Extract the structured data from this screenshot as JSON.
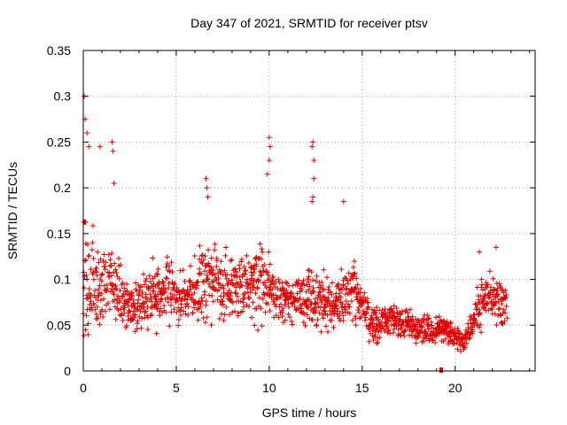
{
  "chart_data": {
    "type": "scatter",
    "title": "Day 347 of 2021, SRMTID for receiver ptsv",
    "xlabel": "GPS time / hours",
    "ylabel": "SRMTID / TECUs",
    "xlim": [
      0,
      24.3
    ],
    "ylim": [
      0,
      0.35
    ],
    "xticks": [
      0,
      5,
      10,
      15,
      20
    ],
    "yticks": [
      0,
      0.05,
      0.1,
      0.15,
      0.2,
      0.25,
      0.3,
      0.35
    ],
    "xtick_labels": [
      "0",
      "5",
      "10",
      "15",
      "20"
    ],
    "ytick_labels": [
      "0",
      "0.05",
      "0.1",
      "0.15",
      "0.2",
      "0.25",
      "0.3",
      "0.35"
    ],
    "grid": true,
    "marker": "+",
    "color": "#e00000",
    "series": [
      {
        "name": "SRMTID",
        "approximate_envelope": {
          "x": [
            0,
            0.3,
            0.8,
            1.5,
            2.5,
            3.5,
            4.5,
            5.5,
            6.5,
            7.5,
            8.5,
            9.5,
            10.5,
            11.5,
            12.5,
            13.5,
            14.5,
            15.5,
            16.5,
            17.5,
            18.5,
            19.5,
            20.5,
            21.5,
            22.5
          ],
          "center": [
            0.1,
            0.1,
            0.09,
            0.1,
            0.07,
            0.08,
            0.09,
            0.08,
            0.1,
            0.09,
            0.09,
            0.1,
            0.08,
            0.08,
            0.08,
            0.07,
            0.09,
            0.05,
            0.055,
            0.05,
            0.045,
            0.045,
            0.03,
            0.08,
            0.075
          ],
          "spread": [
            0.1,
            0.09,
            0.06,
            0.05,
            0.03,
            0.04,
            0.05,
            0.03,
            0.06,
            0.05,
            0.04,
            0.06,
            0.04,
            0.035,
            0.05,
            0.03,
            0.04,
            0.03,
            0.02,
            0.02,
            0.02,
            0.02,
            0.015,
            0.04,
            0.03
          ]
        },
        "highlights": [
          {
            "x": 0.05,
            "y": 0.3
          },
          {
            "x": 0.1,
            "y": 0.275
          },
          {
            "x": 0.2,
            "y": 0.26
          },
          {
            "x": 0.3,
            "y": 0.245
          },
          {
            "x": 0.9,
            "y": 0.245
          },
          {
            "x": 1.55,
            "y": 0.25
          },
          {
            "x": 1.6,
            "y": 0.24
          },
          {
            "x": 1.65,
            "y": 0.205
          },
          {
            "x": 6.6,
            "y": 0.21
          },
          {
            "x": 6.65,
            "y": 0.2
          },
          {
            "x": 6.7,
            "y": 0.19
          },
          {
            "x": 10.0,
            "y": 0.255
          },
          {
            "x": 10.05,
            "y": 0.245
          },
          {
            "x": 10.0,
            "y": 0.23
          },
          {
            "x": 9.9,
            "y": 0.215
          },
          {
            "x": 12.35,
            "y": 0.25
          },
          {
            "x": 12.3,
            "y": 0.245
          },
          {
            "x": 12.4,
            "y": 0.23
          },
          {
            "x": 12.35,
            "y": 0.19
          },
          {
            "x": 12.3,
            "y": 0.185
          },
          {
            "x": 12.4,
            "y": 0.21
          },
          {
            "x": 14.0,
            "y": 0.185
          },
          {
            "x": 22.2,
            "y": 0.135
          },
          {
            "x": 21.3,
            "y": 0.13
          }
        ],
        "outliers": [
          {
            "x": 19.25,
            "y": 0.0
          }
        ]
      }
    ]
  }
}
